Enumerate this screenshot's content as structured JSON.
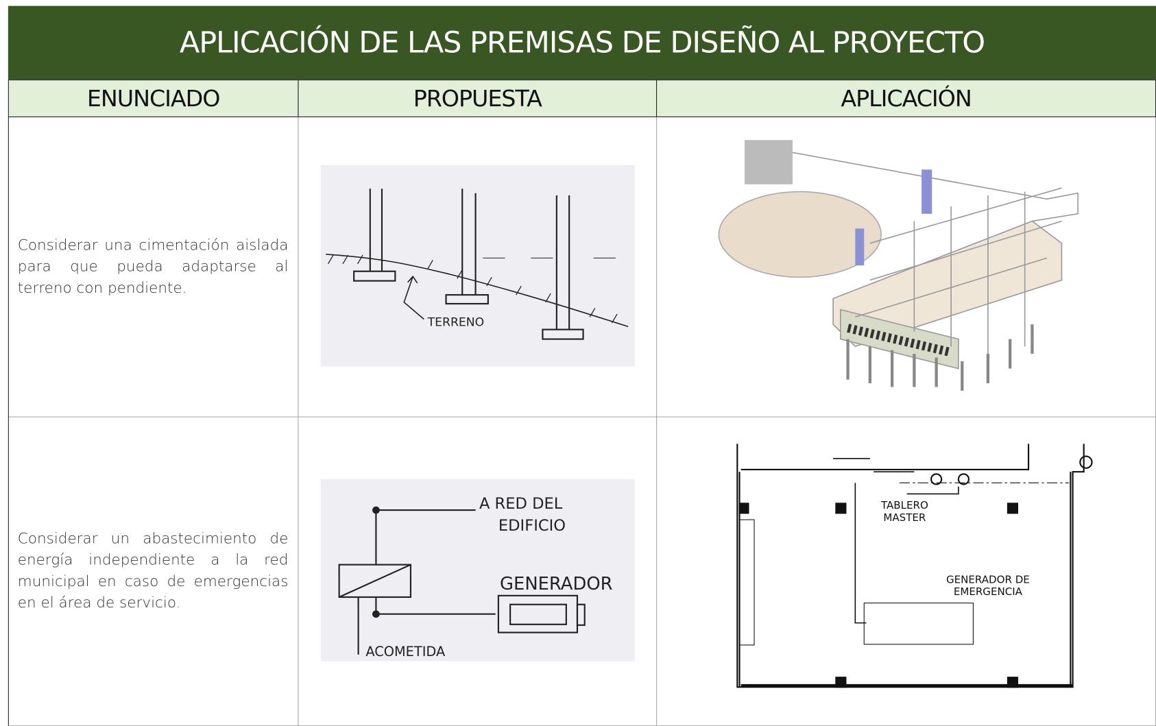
{
  "header": {
    "title": "APLICACIÓN DE LAS PREMISAS DE DISEÑO AL PROYECTO"
  },
  "table": {
    "columns": [
      "ENUNCIADO",
      "PROPUESTA",
      "APLICACIÓN"
    ],
    "rows": [
      {
        "enunciado": "Considerar una cimentación aislada para que pueda adaptarse al terreno con pendiente.",
        "propuesta_labels": [
          "TERRENO"
        ]
      },
      {
        "enunciado": "Considerar un abastecimiento de energía independiente a la red municipal en caso de emergencias en el área de servicio.",
        "propuesta_labels": [
          "A RED DEL",
          "EDIFICIO",
          "GENERADOR",
          "ACOMETIDA"
        ],
        "aplicacion_labels": [
          "TABLERO",
          "MASTER",
          "GENERADOR DE",
          "EMERGENCIA"
        ]
      }
    ]
  }
}
